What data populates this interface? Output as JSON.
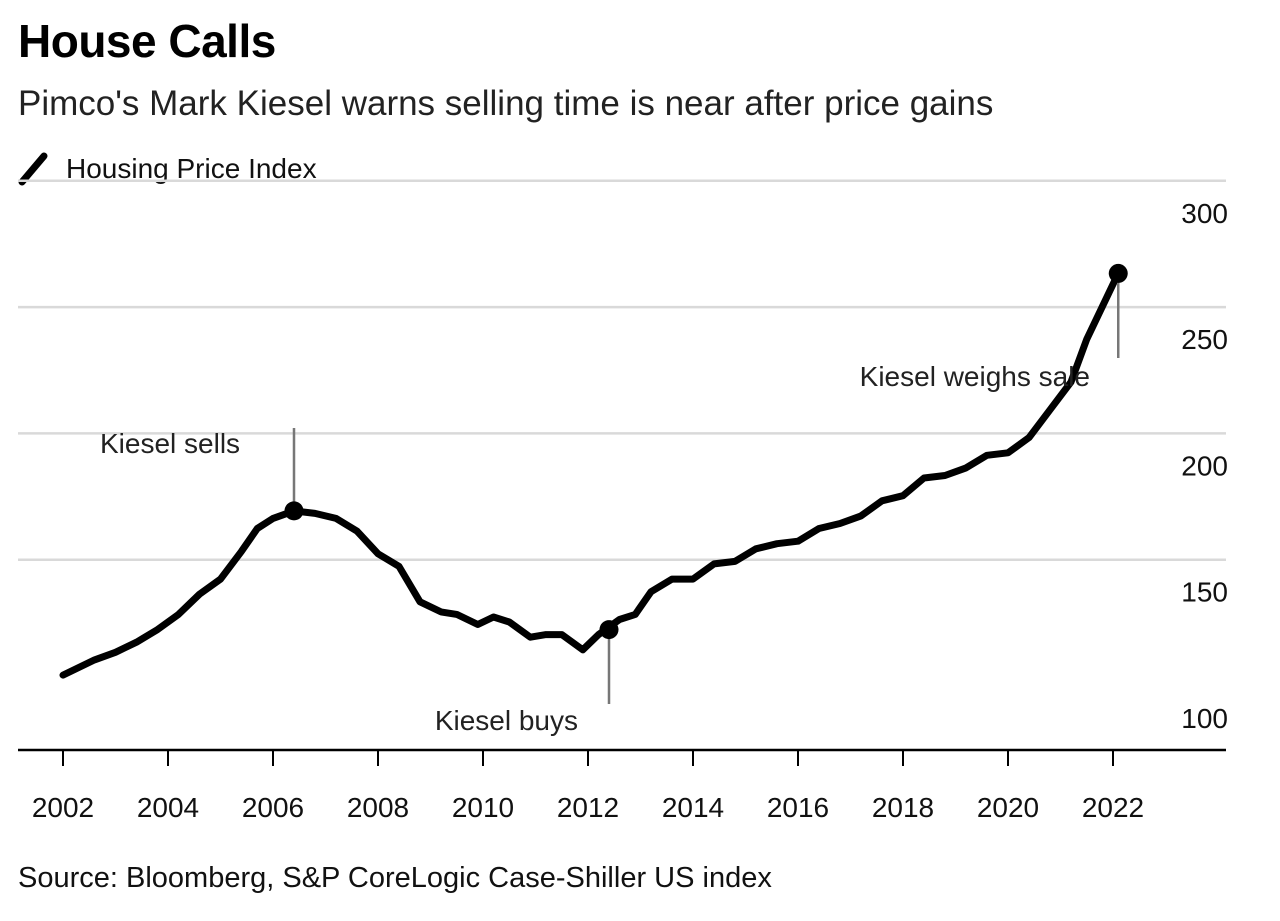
{
  "chart_data": {
    "type": "line",
    "title": "House Calls",
    "subtitle": "Pimco's Mark Kiesel warns selling time is near after price gains",
    "source": "Source: Bloomberg, S&P CoreLogic Case-Shiller US index",
    "xlabel": "",
    "ylabel": "",
    "xlim": [
      2001.1,
      2023.1
    ],
    "ylim": [
      86,
      300
    ],
    "x_ticks": [
      2002,
      2004,
      2006,
      2008,
      2010,
      2012,
      2014,
      2016,
      2018,
      2020,
      2022
    ],
    "y_ticks": [
      100,
      150,
      200,
      250,
      300
    ],
    "y_axis_side": "right",
    "grid": "horizontal",
    "legend": "top-left",
    "series": [
      {
        "name": "Housing Price Index",
        "color": "#000000",
        "x": [
          2002.0,
          2002.6,
          2003.0,
          2003.4,
          2003.8,
          2004.2,
          2004.6,
          2005.0,
          2005.4,
          2005.7,
          2006.0,
          2006.4,
          2006.8,
          2007.2,
          2007.6,
          2008.0,
          2008.4,
          2008.8,
          2009.2,
          2009.5,
          2009.9,
          2010.2,
          2010.5,
          2010.9,
          2011.2,
          2011.5,
          2011.9,
          2012.2,
          2012.6,
          2012.9,
          2013.2,
          2013.6,
          2014.0,
          2014.4,
          2014.8,
          2015.2,
          2015.6,
          2016.0,
          2016.4,
          2016.8,
          2017.2,
          2017.6,
          2018.0,
          2018.4,
          2018.8,
          2019.2,
          2019.6,
          2020.0,
          2020.4,
          2020.8,
          2021.2,
          2021.5,
          2021.8,
          2022.1
        ],
        "values": [
          117,
          123,
          126,
          130,
          135,
          141,
          149,
          155,
          166,
          175,
          179,
          182,
          181,
          179,
          174,
          165,
          160,
          146,
          142,
          141,
          137,
          140,
          138,
          132,
          133,
          133,
          127,
          133,
          139,
          141,
          150,
          155,
          155,
          161,
          162,
          167,
          169,
          170,
          175,
          177,
          180,
          186,
          188,
          195,
          196,
          199,
          204,
          205,
          211,
          222,
          233,
          250,
          263,
          276
        ]
      }
    ],
    "markers": [
      {
        "x": 2006.4,
        "y": 182,
        "label": "Kiesel sells"
      },
      {
        "x": 2012.4,
        "y": 135,
        "label": "Kiesel buys"
      },
      {
        "x": 2022.1,
        "y": 276,
        "label": "Kiesel weighs sale"
      }
    ]
  }
}
